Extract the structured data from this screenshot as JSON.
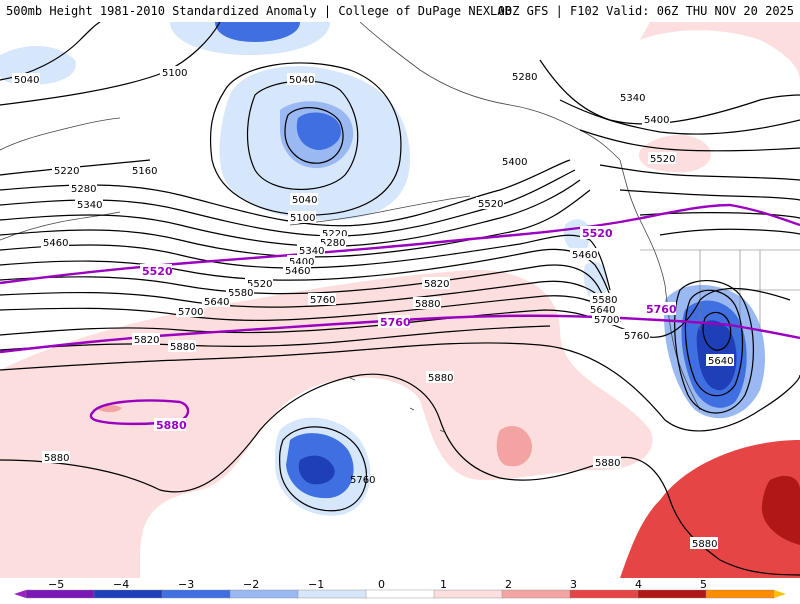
{
  "header": {
    "title_left": "500mb Height 1981-2010 Standardized Anomaly | College of DuPage NEXLAB",
    "title_right": "00Z GFS | F102 Valid: 06Z THU NOV 20 2025"
  },
  "contours": {
    "height_labels": [
      "5040",
      "5100",
      "5040",
      "5160",
      "5220",
      "5280",
      "5340",
      "5460",
      "5040",
      "5100",
      "5220",
      "5280",
      "5340",
      "5400",
      "5460",
      "5520",
      "5580",
      "5640",
      "5700",
      "5760",
      "5820",
      "5880",
      "5820",
      "5880",
      "5880",
      "5880",
      "5280",
      "5340",
      "5400",
      "5520",
      "5400",
      "5520",
      "5460",
      "5580",
      "5640",
      "5700",
      "5760",
      "5640",
      "5880",
      "5880"
    ],
    "highlight_labels": [
      "5520",
      "5760",
      "5880",
      "5520",
      "5760"
    ]
  },
  "colorbar": {
    "ticks": [
      "−5",
      "−4",
      "−3",
      "−2",
      "−1",
      "0",
      "1",
      "2",
      "3",
      "4",
      "5"
    ],
    "colors": [
      "#9c1fc2",
      "#7a17b6",
      "#1f3fb8",
      "#3f6fe0",
      "#9ab8f2",
      "#d6e6fb",
      "#ffffff",
      "#fcdede",
      "#f4a3a3",
      "#e64545",
      "#b01818",
      "#ff8c00",
      "#ffc000"
    ]
  },
  "colors": {
    "contour": "#000000",
    "highlight": "#9b00c0",
    "pos_light": "#fcdede",
    "pos_mid": "#f4a3a3",
    "pos_strong": "#e64545",
    "pos_stronger": "#b01818",
    "neg_light": "#d6e6fb",
    "neg_mid": "#9ab8f2",
    "neg_strong": "#3f6fe0",
    "neg_stronger": "#1f3fb8"
  }
}
